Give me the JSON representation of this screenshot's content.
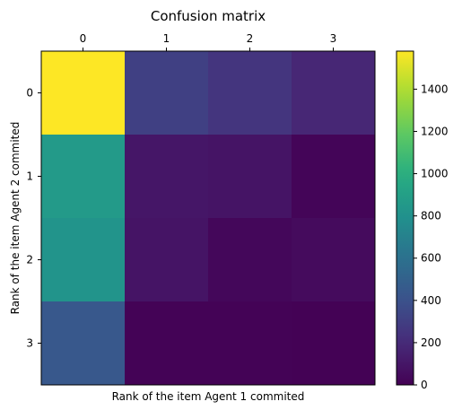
{
  "chart_data": {
    "type": "heatmap",
    "title": "Confusion matrix",
    "xlabel": "Rank of the item Agent 1 commited",
    "ylabel": "Rank of the item Agent 2 commited",
    "x_categories": [
      "0",
      "1",
      "2",
      "3"
    ],
    "y_categories": [
      "0",
      "1",
      "2",
      "3"
    ],
    "values": [
      [
        1580,
        310,
        250,
        180
      ],
      [
        860,
        100,
        90,
        20
      ],
      [
        820,
        90,
        30,
        50
      ],
      [
        440,
        10,
        10,
        5
      ]
    ],
    "colorbar": {
      "min": 0,
      "max": 1580,
      "ticks": [
        0,
        200,
        400,
        600,
        800,
        1000,
        1200,
        1400
      ]
    },
    "colormap": "viridis",
    "x_tick_position": "top"
  }
}
